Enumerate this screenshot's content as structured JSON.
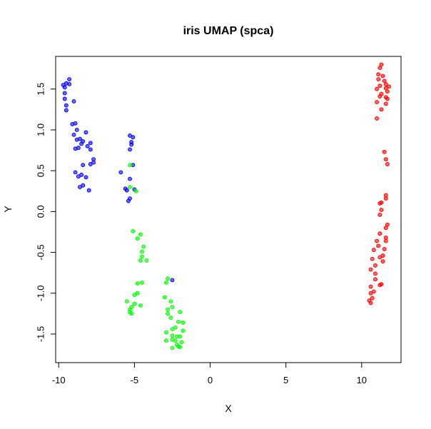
{
  "chart_data": {
    "type": "scatter",
    "title": "iris UMAP (spca)",
    "xlabel": "X",
    "ylabel": "Y",
    "xlim": [
      -10.2,
      12.6
    ],
    "ylim": [
      -1.85,
      1.9
    ],
    "xticks": [
      -10,
      -5,
      0,
      5,
      10
    ],
    "yticks": [
      -1.5,
      -1.0,
      -0.5,
      0.0,
      0.5,
      1.0,
      1.5
    ],
    "xtick_labels": [
      "-10",
      "-5",
      "0",
      "5",
      "10"
    ],
    "ytick_labels": [
      "-1.5",
      "-1.0",
      "-0.5",
      "0.0",
      "0.5",
      "1.0",
      "1.5"
    ],
    "grid": false,
    "legend": "none",
    "series": [
      {
        "color": "#ff0000",
        "points": [
          [
            11.3,
            1.8
          ],
          [
            11.2,
            1.76
          ],
          [
            11.1,
            1.68
          ],
          [
            11.4,
            1.66
          ],
          [
            11.1,
            1.62
          ],
          [
            11.5,
            1.6
          ],
          [
            11.6,
            1.56
          ],
          [
            11.2,
            1.54
          ],
          [
            11.8,
            1.53
          ],
          [
            11.6,
            1.51
          ],
          [
            11.0,
            1.5
          ],
          [
            11.7,
            1.47
          ],
          [
            11.3,
            1.44
          ],
          [
            11.2,
            1.41
          ],
          [
            11.6,
            1.4
          ],
          [
            11.7,
            1.38
          ],
          [
            11.0,
            1.34
          ],
          [
            11.3,
            1.25
          ],
          [
            11.6,
            1.32
          ],
          [
            11.0,
            1.14
          ],
          [
            11.5,
            0.73
          ],
          [
            11.6,
            0.64
          ],
          [
            11.7,
            0.58
          ],
          [
            11.6,
            0.2
          ],
          [
            11.6,
            0.16
          ],
          [
            11.3,
            0.11
          ],
          [
            11.2,
            0.1
          ],
          [
            11.3,
            0.02
          ],
          [
            11.2,
            -0.04
          ],
          [
            11.7,
            -0.16
          ],
          [
            11.6,
            -0.2
          ],
          [
            11.2,
            -0.27
          ],
          [
            11.6,
            -0.32
          ],
          [
            11.6,
            -0.36
          ],
          [
            11.0,
            -0.36
          ],
          [
            11.1,
            -0.42
          ],
          [
            10.8,
            -0.47
          ],
          [
            11.5,
            -0.46
          ],
          [
            11.4,
            -0.54
          ],
          [
            11.2,
            -0.56
          ],
          [
            10.7,
            -0.58
          ],
          [
            11.4,
            -0.61
          ],
          [
            10.9,
            -0.66
          ],
          [
            10.9,
            -0.76
          ],
          [
            10.6,
            -0.71
          ],
          [
            10.9,
            -0.83
          ],
          [
            11.3,
            -0.89
          ],
          [
            11.2,
            -0.9
          ],
          [
            10.6,
            -0.92
          ],
          [
            10.8,
            -0.98
          ],
          [
            10.6,
            -1.0
          ],
          [
            10.7,
            -1.06
          ],
          [
            10.5,
            -1.09
          ],
          [
            10.6,
            -1.12
          ]
        ]
      },
      {
        "color": "#0000ff",
        "points": [
          [
            -9.3,
            1.62
          ],
          [
            -9.5,
            1.57
          ],
          [
            -9.3,
            1.56
          ],
          [
            -9.7,
            1.55
          ],
          [
            -9.6,
            1.52
          ],
          [
            -9.6,
            1.45
          ],
          [
            -9.6,
            1.38
          ],
          [
            -9.0,
            1.35
          ],
          [
            -9.5,
            1.3
          ],
          [
            -9.5,
            1.24
          ],
          [
            -9.1,
            1.07
          ],
          [
            -8.9,
            1.08
          ],
          [
            -8.8,
            1.0
          ],
          [
            -8.2,
            0.97
          ],
          [
            -9.0,
            0.94
          ],
          [
            -8.6,
            0.89
          ],
          [
            -8.8,
            0.88
          ],
          [
            -8.4,
            0.86
          ],
          [
            -8.5,
            0.83
          ],
          [
            -7.9,
            0.84
          ],
          [
            -8.1,
            0.8
          ],
          [
            -8.7,
            0.78
          ],
          [
            -8.9,
            0.77
          ],
          [
            -7.9,
            0.76
          ],
          [
            -7.7,
            0.64
          ],
          [
            -7.7,
            0.6
          ],
          [
            -7.9,
            0.58
          ],
          [
            -8.4,
            0.57
          ],
          [
            -8.9,
            0.48
          ],
          [
            -8.5,
            0.45
          ],
          [
            -8.2,
            0.42
          ],
          [
            -8.7,
            0.43
          ],
          [
            -8.4,
            0.32
          ],
          [
            -8.6,
            0.3
          ],
          [
            -8.0,
            0.26
          ],
          [
            -5.3,
            0.93
          ],
          [
            -5.1,
            0.91
          ],
          [
            -5.2,
            0.85
          ],
          [
            -5.2,
            0.82
          ],
          [
            -5.3,
            0.76
          ],
          [
            -5.1,
            0.57
          ],
          [
            -5.9,
            0.48
          ],
          [
            -5.3,
            0.4
          ],
          [
            -5.6,
            0.28
          ],
          [
            -5.5,
            0.26
          ],
          [
            -5.0,
            0.27
          ],
          [
            -5.3,
            0.16
          ],
          [
            -5.4,
            0.13
          ],
          [
            -2.5,
            -0.84
          ]
        ]
      },
      {
        "color": "#00ff00",
        "points": [
          [
            -5.3,
            0.57
          ],
          [
            -5.3,
            0.3
          ],
          [
            -4.9,
            0.25
          ],
          [
            -5.1,
            -0.24
          ],
          [
            -4.6,
            -0.28
          ],
          [
            -4.8,
            -0.33
          ],
          [
            -4.4,
            -0.43
          ],
          [
            -4.5,
            -0.49
          ],
          [
            -4.5,
            -0.55
          ],
          [
            -4.6,
            -0.6
          ],
          [
            -4.2,
            -0.6
          ],
          [
            -4.8,
            -0.88
          ],
          [
            -4.5,
            -0.87
          ],
          [
            -4.8,
            -1.0
          ],
          [
            -5.0,
            -1.02
          ],
          [
            -5.5,
            -1.1
          ],
          [
            -5.0,
            -1.13
          ],
          [
            -4.6,
            -1.15
          ],
          [
            -5.2,
            -1.17
          ],
          [
            -5.3,
            -1.2
          ],
          [
            -5.3,
            -1.23
          ],
          [
            -5.2,
            -1.25
          ],
          [
            -2.8,
            -0.82
          ],
          [
            -2.9,
            -0.87
          ],
          [
            -3.0,
            -1.05
          ],
          [
            -2.6,
            -1.1
          ],
          [
            -2.5,
            -1.17
          ],
          [
            -2.8,
            -1.2
          ],
          [
            -2.8,
            -1.25
          ],
          [
            -2.0,
            -1.23
          ],
          [
            -2.6,
            -1.3
          ],
          [
            -2.1,
            -1.35
          ],
          [
            -1.8,
            -1.36
          ],
          [
            -2.3,
            -1.42
          ],
          [
            -2.5,
            -1.44
          ],
          [
            -1.8,
            -1.46
          ],
          [
            -2.9,
            -1.48
          ],
          [
            -2.5,
            -1.52
          ],
          [
            -2.2,
            -1.53
          ],
          [
            -2.0,
            -1.53
          ],
          [
            -2.3,
            -1.58
          ],
          [
            -2.5,
            -1.57
          ],
          [
            -2.9,
            -1.58
          ],
          [
            -1.9,
            -1.6
          ],
          [
            -2.1,
            -1.65
          ],
          [
            -2.5,
            -1.67
          ],
          [
            -2.2,
            -1.63
          ],
          [
            -2.0,
            -1.66
          ]
        ]
      }
    ]
  }
}
